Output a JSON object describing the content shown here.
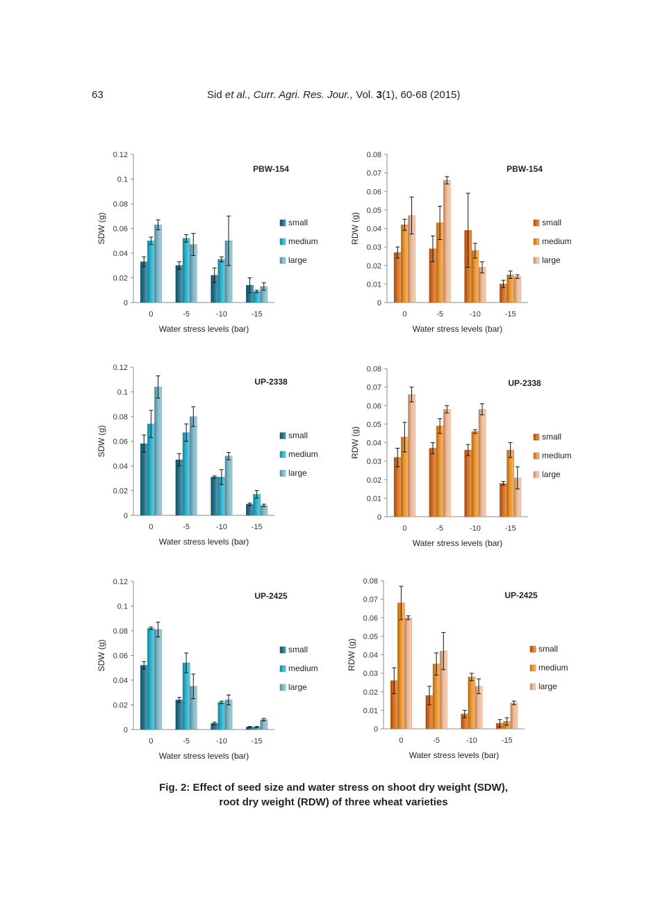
{
  "header": {
    "page_number": "63",
    "author": "Sid",
    "etal": "et al.,",
    "journal": "Curr. Agri. Res. Jour.,",
    "vol_label": "Vol.",
    "vol_number": "3",
    "issue_pages": "(1), 60-68 (2015)"
  },
  "caption": {
    "line1": "Fig. 2: Effect of seed size and water stress on shoot dry weight (SDW),",
    "line2": "root dry weight (RDW) of three wheat varieties"
  },
  "colors": {
    "sdw": [
      "#22718a",
      "#2cb4d0",
      "#7fb8c8"
    ],
    "rdw": [
      "#d96f1d",
      "#f0962a",
      "#f3b993"
    ]
  },
  "chart_data": [
    {
      "id": "sdw-pbw154",
      "type": "bar",
      "title": "PBW-154",
      "xlabel": "Water stress levels (bar)",
      "ylabel": "SDW (g)",
      "categories": [
        "0",
        "-5",
        "-10",
        "-15"
      ],
      "ylim": [
        0,
        0.12
      ],
      "yticks": [
        "0",
        "0.02",
        "0.04",
        "0.06",
        "0.08",
        "0.1",
        "0.12"
      ],
      "legend_position": "right",
      "series": [
        {
          "name": "small",
          "values": [
            0.033,
            0.03,
            0.022,
            0.014
          ],
          "errors": [
            0.004,
            0.003,
            0.006,
            0.006
          ]
        },
        {
          "name": "medium",
          "values": [
            0.05,
            0.052,
            0.035,
            0.009
          ],
          "errors": [
            0.003,
            0.003,
            0.002,
            0.001
          ]
        },
        {
          "name": "large",
          "values": [
            0.063,
            0.047,
            0.05,
            0.013
          ],
          "errors": [
            0.004,
            0.009,
            0.02,
            0.003
          ]
        }
      ]
    },
    {
      "id": "rdw-pbw154",
      "type": "bar",
      "title": "PBW-154",
      "xlabel": "Water stress levels (bar)",
      "ylabel": "RDW (g)",
      "categories": [
        "0",
        "-5",
        "-10",
        "-15"
      ],
      "ylim": [
        0,
        0.08
      ],
      "yticks": [
        "0",
        "0.01",
        "0.02",
        "0.03",
        "0.04",
        "0.05",
        "0.06",
        "0.07",
        "0.08"
      ],
      "legend_position": "right",
      "series": [
        {
          "name": "small",
          "values": [
            0.027,
            0.029,
            0.039,
            0.01
          ],
          "errors": [
            0.003,
            0.007,
            0.02,
            0.002
          ]
        },
        {
          "name": "medium",
          "values": [
            0.042,
            0.043,
            0.028,
            0.015
          ],
          "errors": [
            0.003,
            0.009,
            0.004,
            0.002
          ]
        },
        {
          "name": "large",
          "values": [
            0.047,
            0.066,
            0.019,
            0.014
          ],
          "errors": [
            0.01,
            0.002,
            0.003,
            0.001
          ]
        }
      ]
    },
    {
      "id": "sdw-up2338",
      "type": "bar",
      "title": "UP-2338",
      "xlabel": "Water stress levels (bar)",
      "ylabel": "SDW (g)",
      "categories": [
        "0",
        "-5",
        "-10",
        "-15"
      ],
      "ylim": [
        0,
        0.12
      ],
      "yticks": [
        "0",
        "0.02",
        "0.04",
        "0.06",
        "0.08",
        "0.1",
        "0.12"
      ],
      "legend_position": "right",
      "series": [
        {
          "name": "small",
          "values": [
            0.058,
            0.045,
            0.031,
            0.009
          ],
          "errors": [
            0.007,
            0.005,
            0.001,
            0.001
          ]
        },
        {
          "name": "medium",
          "values": [
            0.074,
            0.067,
            0.031,
            0.017
          ],
          "errors": [
            0.011,
            0.007,
            0.006,
            0.003
          ]
        },
        {
          "name": "large",
          "values": [
            0.104,
            0.08,
            0.048,
            0.008
          ],
          "errors": [
            0.009,
            0.008,
            0.003,
            0.001
          ]
        }
      ]
    },
    {
      "id": "rdw-up2338",
      "type": "bar",
      "title": "UP-2338",
      "xlabel": "Water stress levels (bar)",
      "ylabel": "RDW (g)",
      "categories": [
        "0",
        "-5",
        "-10",
        "-15"
      ],
      "ylim": [
        0,
        0.08
      ],
      "yticks": [
        "0",
        "0.01",
        "0.02",
        "0.03",
        "0.04",
        "0.05",
        "0.06",
        "0.07",
        "0.08"
      ],
      "legend_position": "right",
      "series": [
        {
          "name": "small",
          "values": [
            0.032,
            0.037,
            0.036,
            0.018
          ],
          "errors": [
            0.005,
            0.003,
            0.003,
            0.001
          ]
        },
        {
          "name": "medium",
          "values": [
            0.043,
            0.049,
            0.046,
            0.036
          ],
          "errors": [
            0.008,
            0.004,
            0.001,
            0.004
          ]
        },
        {
          "name": "large",
          "values": [
            0.066,
            0.058,
            0.058,
            0.021
          ],
          "errors": [
            0.004,
            0.002,
            0.003,
            0.006
          ]
        }
      ]
    },
    {
      "id": "sdw-up2425",
      "type": "bar",
      "title": "UP-2425",
      "xlabel": "Water stress levels (bar)",
      "ylabel": "SDW (g)",
      "categories": [
        "0",
        "-5",
        "-10",
        "-15"
      ],
      "ylim": [
        0,
        0.12
      ],
      "yticks": [
        "0",
        "0.02",
        "0.04",
        "0.06",
        "0.08",
        "0.1",
        "0.12"
      ],
      "legend_position": "right",
      "series": [
        {
          "name": "small",
          "values": [
            0.052,
            0.024,
            0.005,
            0.002
          ],
          "errors": [
            0.003,
            0.002,
            0.001,
            0.0005
          ]
        },
        {
          "name": "medium",
          "values": [
            0.082,
            0.054,
            0.022,
            0.002
          ],
          "errors": [
            0.001,
            0.008,
            0.001,
            0.0005
          ]
        },
        {
          "name": "large",
          "values": [
            0.081,
            0.035,
            0.024,
            0.008
          ],
          "errors": [
            0.006,
            0.01,
            0.004,
            0.001
          ]
        }
      ]
    },
    {
      "id": "rdw-up2425",
      "type": "bar",
      "title": "UP-2425",
      "xlabel": "Water stress levels (bar)",
      "ylabel": "RDW (g)",
      "categories": [
        "0",
        "-5",
        "-10",
        "-15"
      ],
      "ylim": [
        0,
        0.08
      ],
      "yticks": [
        "0",
        "0.01",
        "0.02",
        "0.03",
        "0.04",
        "0.05",
        "0.06",
        "0.07",
        "0.08"
      ],
      "legend_position": "right",
      "series": [
        {
          "name": "small",
          "values": [
            0.026,
            0.018,
            0.008,
            0.003
          ],
          "errors": [
            0.007,
            0.005,
            0.002,
            0.002
          ]
        },
        {
          "name": "medium",
          "values": [
            0.068,
            0.035,
            0.028,
            0.004
          ],
          "errors": [
            0.009,
            0.006,
            0.002,
            0.002
          ]
        },
        {
          "name": "large",
          "values": [
            0.06,
            0.042,
            0.023,
            0.014
          ],
          "errors": [
            0.001,
            0.01,
            0.004,
            0.001
          ]
        }
      ]
    }
  ]
}
